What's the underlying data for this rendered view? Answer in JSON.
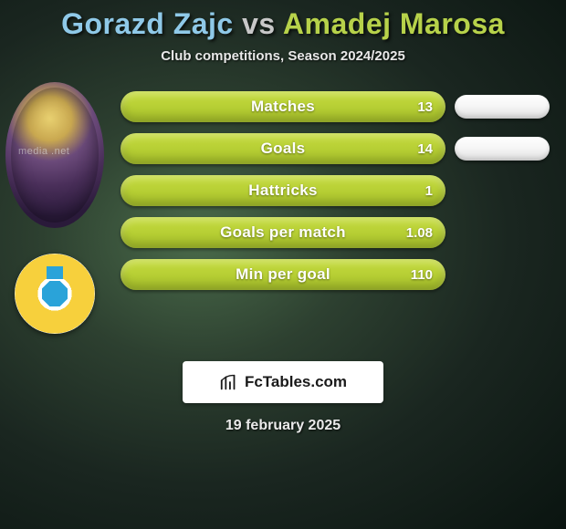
{
  "header": {
    "title_parts": [
      {
        "text": "Gorazd Zajc",
        "color": "#8fc9e8"
      },
      {
        "text": " vs ",
        "color": "#c8c8c8"
      },
      {
        "text": "Amadej Marosa",
        "color": "#b7d24a"
      }
    ],
    "subtitle": "Club competitions, Season 2024/2025"
  },
  "avatar_watermark": "media        .net",
  "bars": {
    "fill_color_start": "#c6dc3f",
    "fill_color_end": "#a8c22a",
    "rows": [
      {
        "label": "Matches",
        "value": "13"
      },
      {
        "label": "Goals",
        "value": "14"
      },
      {
        "label": "Hattricks",
        "value": "1"
      },
      {
        "label": "Goals per match",
        "value": "1.08"
      },
      {
        "label": "Min per goal",
        "value": "110"
      }
    ]
  },
  "right_pills": {
    "count": 2,
    "bg": "#f2f2f2"
  },
  "footer": {
    "brand": "FcTables.com",
    "date": "19 february 2025"
  },
  "colors": {
    "background_center": "#4a6b4a",
    "background_edge": "#0a1410",
    "text_light": "#e8e8e8",
    "title_shadow": "rgba(0,0,0,0.7)"
  }
}
